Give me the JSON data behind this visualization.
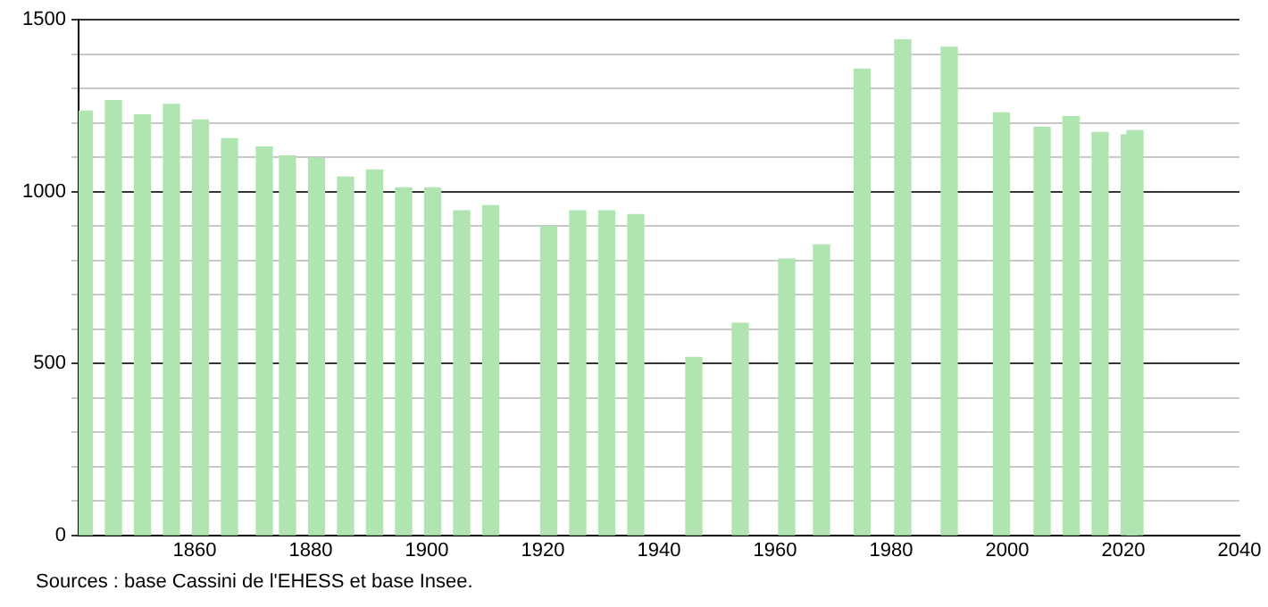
{
  "chart_data": {
    "type": "bar",
    "x": [
      1841,
      1846,
      1851,
      1856,
      1861,
      1866,
      1872,
      1876,
      1881,
      1886,
      1891,
      1896,
      1901,
      1906,
      1911,
      1921,
      1926,
      1931,
      1936,
      1946,
      1954,
      1962,
      1968,
      1975,
      1982,
      1990,
      1999,
      2006,
      2011,
      2016,
      2021,
      2022
    ],
    "values": [
      1234,
      1265,
      1223,
      1254,
      1208,
      1154,
      1130,
      1104,
      1097,
      1042,
      1063,
      1011,
      1011,
      944,
      959,
      899,
      944,
      944,
      933,
      518,
      617,
      804,
      845,
      1356,
      1441,
      1420,
      1229,
      1187,
      1218,
      1172,
      1165,
      1177
    ],
    "color": "#b0e4b0",
    "xlim": [
      1840,
      2040
    ],
    "xticks": [
      1860,
      1880,
      1900,
      1920,
      1940,
      1960,
      1980,
      2000,
      2020,
      2040
    ],
    "ylim": [
      0,
      1500
    ],
    "yticks": [
      0,
      {
        "value": 100,
        "label": null
      },
      {
        "value": 200,
        "label": null
      },
      {
        "value": 300,
        "label": null
      },
      {
        "value": 400,
        "label": null
      },
      500,
      {
        "value": 600,
        "label": null
      },
      {
        "value": 700,
        "label": null
      },
      {
        "value": 800,
        "label": null
      },
      {
        "value": 900,
        "label": null
      },
      1000,
      {
        "value": 1100,
        "label": null
      },
      {
        "value": 1200,
        "label": null
      },
      {
        "value": 1300,
        "label": null
      },
      {
        "value": 1400,
        "label": null
      },
      1500
    ],
    "grid": "y",
    "legend": false,
    "annotations": [
      "Sources : base Cassini de l'EHESS et base Insee."
    ]
  }
}
